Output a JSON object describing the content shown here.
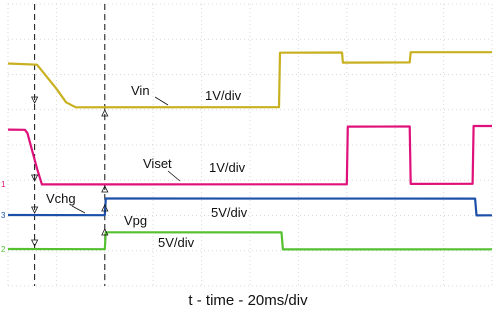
{
  "chart_data": {
    "type": "line",
    "title": "",
    "xlabel": "t - time - 20ms/div",
    "ylabel": "",
    "x_unit": "ms",
    "divisions": {
      "x": 10,
      "y": 8
    },
    "grid": true,
    "series": [
      {
        "name": "Vin",
        "scale": "1V/div",
        "color": "#c8b020",
        "x": [
          0,
          6,
          8,
          10,
          12,
          14,
          56,
          56.2,
          69,
          69.2,
          83,
          83.2,
          100
        ],
        "y": [
          1.28,
          1.25,
          0.9,
          0.55,
          0.15,
          0,
          0,
          1.6,
          1.6,
          1.3,
          1.3,
          1.6,
          1.6
        ]
      },
      {
        "name": "Viset",
        "scale": "1V/div",
        "color": "#e0107a",
        "x": [
          0,
          3.5,
          4,
          6,
          7,
          70,
          70.2,
          83,
          83.2,
          96,
          96.2,
          100
        ],
        "y": [
          1.7,
          1.7,
          1.6,
          0.5,
          0,
          0,
          1.8,
          1.8,
          0,
          0,
          1.8,
          1.8
        ]
      },
      {
        "name": "Vchg",
        "scale": "5V/div",
        "color": "#1c4fa8",
        "x": [
          0,
          20,
          20.2,
          96.5,
          96.8,
          100
        ],
        "y": [
          0,
          0,
          0.6,
          0.6,
          0,
          0
        ]
      },
      {
        "name": "Vpg",
        "scale": "5V/div",
        "color": "#55c030",
        "x": [
          0,
          20,
          20.2,
          56.5,
          56.8,
          100
        ],
        "y": [
          0,
          0,
          1.0,
          1.0,
          0,
          0
        ]
      }
    ],
    "cursors_x": [
      5.5,
      20
    ],
    "annotations": [
      {
        "text": "Vin",
        "series": "Vin"
      },
      {
        "text": "1V/div",
        "series": "Vin"
      },
      {
        "text": "Viset",
        "series": "Viset"
      },
      {
        "text": "1V/div",
        "series": "Viset"
      },
      {
        "text": "Vchg",
        "series": "Vchg"
      },
      {
        "text": "5V/div",
        "series": "Vchg"
      },
      {
        "text": "Vpg",
        "series": "Vpg"
      },
      {
        "text": "5V/div",
        "series": "Vpg"
      }
    ]
  }
}
